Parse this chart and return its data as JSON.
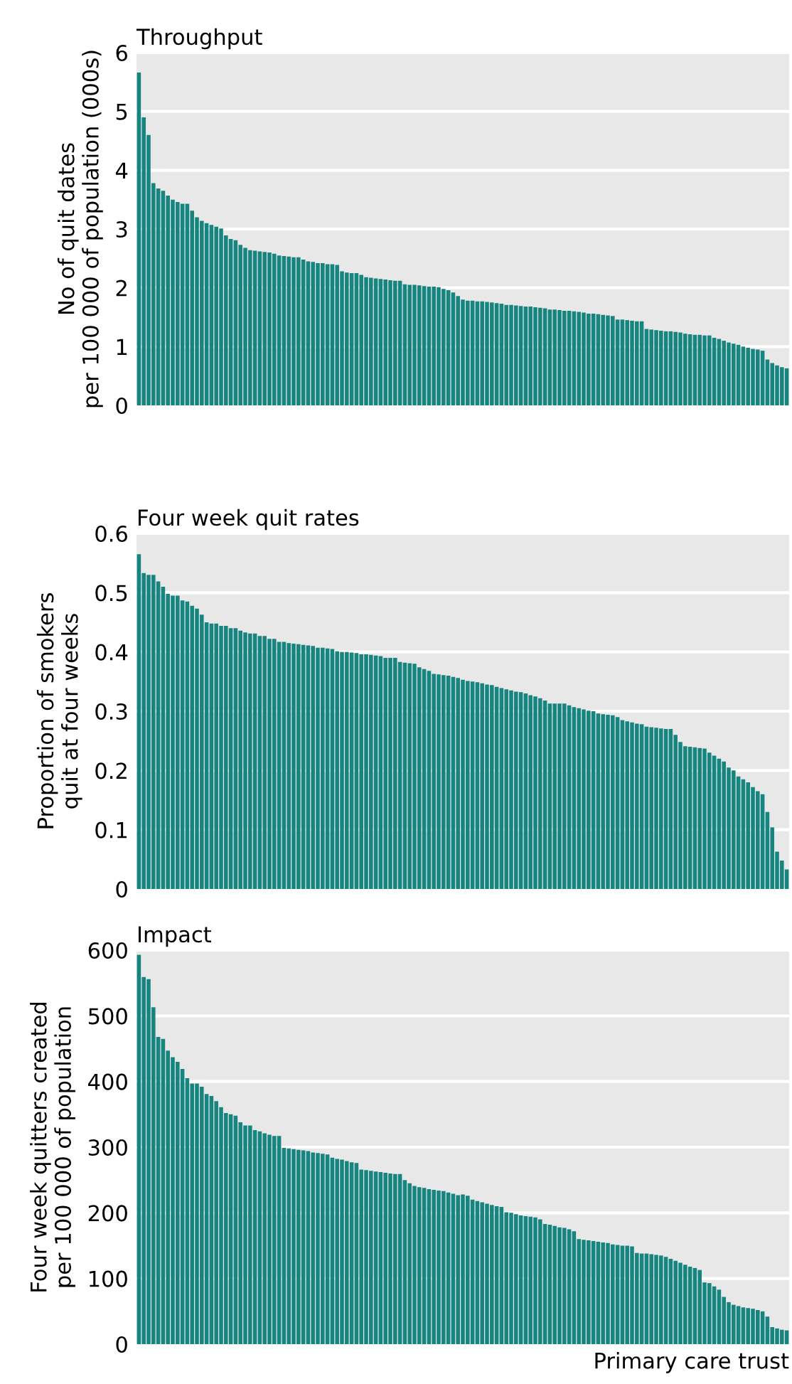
{
  "chart_data": [
    {
      "type": "bar",
      "title": "Throughput",
      "ylabel": "No of quit dates\nper 100 000 of population (000s)",
      "categories": [
        null,
        null,
        null,
        null,
        null,
        null,
        null,
        null,
        null,
        null,
        null,
        null,
        null,
        null,
        null,
        null,
        null,
        null,
        null,
        null,
        null,
        null,
        null,
        null,
        null,
        null,
        null,
        null,
        null,
        null,
        null,
        null,
        null,
        null,
        null,
        null,
        null,
        null,
        null,
        null,
        null,
        null,
        null,
        null,
        null,
        null,
        null,
        null,
        null,
        null,
        null,
        null,
        null,
        null,
        null,
        null,
        null,
        null,
        null,
        null,
        null,
        null,
        null,
        null,
        null,
        null,
        null,
        null,
        null,
        null,
        null,
        null,
        null,
        null,
        null,
        null,
        null,
        null,
        null,
        null,
        null,
        null,
        null,
        null,
        null,
        null,
        null,
        null,
        null,
        null,
        null,
        null,
        null,
        null,
        null,
        null,
        null,
        null,
        null,
        null,
        null,
        null,
        null,
        null,
        null,
        null,
        null,
        null,
        null,
        null,
        null,
        null,
        null,
        null,
        null,
        null,
        null,
        null,
        null,
        null,
        null,
        null,
        null,
        null,
        null,
        null,
        null,
        null,
        null,
        null,
        null,
        null,
        null,
        null,
        null
      ],
      "color": "#17857f",
      "values": [
        5.66,
        4.9,
        4.6,
        3.78,
        3.69,
        3.65,
        3.57,
        3.5,
        3.46,
        3.43,
        3.43,
        3.31,
        3.2,
        3.14,
        3.1,
        3.07,
        3.04,
        3.01,
        2.89,
        2.83,
        2.81,
        2.73,
        2.68,
        2.64,
        2.63,
        2.62,
        2.61,
        2.6,
        2.58,
        2.55,
        2.54,
        2.53,
        2.52,
        2.52,
        2.48,
        2.45,
        2.44,
        2.42,
        2.42,
        2.4,
        2.4,
        2.39,
        2.28,
        2.26,
        2.25,
        2.25,
        2.22,
        2.18,
        2.17,
        2.16,
        2.15,
        2.14,
        2.13,
        2.12,
        2.12,
        2.06,
        2.05,
        2.05,
        2.04,
        2.03,
        2.02,
        2.02,
        2.01,
        1.98,
        1.96,
        1.92,
        1.86,
        1.8,
        1.78,
        1.78,
        1.77,
        1.77,
        1.76,
        1.75,
        1.74,
        1.73,
        1.71,
        1.71,
        1.7,
        1.69,
        1.68,
        1.68,
        1.67,
        1.66,
        1.65,
        1.63,
        1.63,
        1.62,
        1.61,
        1.61,
        1.6,
        1.59,
        1.58,
        1.56,
        1.56,
        1.55,
        1.54,
        1.53,
        1.52,
        1.46,
        1.46,
        1.45,
        1.44,
        1.43,
        1.43,
        1.3,
        1.29,
        1.28,
        1.27,
        1.26,
        1.26,
        1.25,
        1.24,
        1.22,
        1.21,
        1.2,
        1.2,
        1.19,
        1.19,
        1.15,
        1.13,
        1.1,
        1.07,
        1.05,
        1.03,
        1.0,
        0.98,
        0.96,
        0.95,
        0.93,
        0.78,
        0.72,
        0.68,
        0.65,
        0.63
      ],
      "ylim": [
        0,
        6
      ],
      "yticks": [
        0,
        1,
        2,
        3,
        4,
        5,
        6
      ],
      "grid": "y",
      "tick_labels": "y"
    },
    {
      "type": "bar",
      "title": "Four week quit rates",
      "ylabel": "Proportion of smokers\nquit at four weeks",
      "categories": [
        null,
        null,
        null,
        null,
        null,
        null,
        null,
        null,
        null,
        null,
        null,
        null,
        null,
        null,
        null,
        null,
        null,
        null,
        null,
        null,
        null,
        null,
        null,
        null,
        null,
        null,
        null,
        null,
        null,
        null,
        null,
        null,
        null,
        null,
        null,
        null,
        null,
        null,
        null,
        null,
        null,
        null,
        null,
        null,
        null,
        null,
        null,
        null,
        null,
        null,
        null,
        null,
        null,
        null,
        null,
        null,
        null,
        null,
        null,
        null,
        null,
        null,
        null,
        null,
        null,
        null,
        null,
        null,
        null,
        null,
        null,
        null,
        null,
        null,
        null,
        null,
        null,
        null,
        null,
        null,
        null,
        null,
        null,
        null,
        null,
        null,
        null,
        null,
        null,
        null,
        null,
        null,
        null,
        null,
        null,
        null,
        null,
        null,
        null,
        null,
        null,
        null,
        null,
        null,
        null,
        null,
        null,
        null,
        null,
        null,
        null,
        null,
        null,
        null,
        null,
        null,
        null,
        null,
        null,
        null,
        null,
        null,
        null,
        null,
        null,
        null,
        null,
        null,
        null,
        null,
        null,
        null,
        null,
        null,
        null
      ],
      "color": "#17857f",
      "values": [
        0.565,
        0.533,
        0.53,
        0.53,
        0.519,
        0.51,
        0.498,
        0.495,
        0.495,
        0.487,
        0.485,
        0.478,
        0.473,
        0.463,
        0.45,
        0.448,
        0.448,
        0.444,
        0.444,
        0.44,
        0.44,
        0.436,
        0.433,
        0.431,
        0.431,
        0.427,
        0.427,
        0.422,
        0.422,
        0.417,
        0.417,
        0.415,
        0.414,
        0.413,
        0.412,
        0.411,
        0.41,
        0.407,
        0.407,
        0.406,
        0.405,
        0.401,
        0.4,
        0.4,
        0.399,
        0.398,
        0.396,
        0.396,
        0.395,
        0.394,
        0.393,
        0.39,
        0.39,
        0.39,
        0.383,
        0.382,
        0.381,
        0.38,
        0.374,
        0.371,
        0.368,
        0.363,
        0.362,
        0.361,
        0.36,
        0.358,
        0.356,
        0.353,
        0.351,
        0.35,
        0.349,
        0.347,
        0.345,
        0.344,
        0.341,
        0.339,
        0.337,
        0.335,
        0.333,
        0.332,
        0.33,
        0.327,
        0.325,
        0.322,
        0.318,
        0.313,
        0.313,
        0.313,
        0.313,
        0.31,
        0.307,
        0.305,
        0.303,
        0.301,
        0.3,
        0.296,
        0.295,
        0.294,
        0.293,
        0.29,
        0.285,
        0.283,
        0.281,
        0.279,
        0.278,
        0.274,
        0.273,
        0.272,
        0.271,
        0.27,
        0.27,
        0.26,
        0.248,
        0.241,
        0.24,
        0.239,
        0.238,
        0.237,
        0.23,
        0.225,
        0.22,
        0.215,
        0.205,
        0.2,
        0.19,
        0.185,
        0.18,
        0.172,
        0.165,
        0.16,
        0.13,
        0.104,
        0.063,
        0.048,
        0.033
      ],
      "ylim": [
        0,
        0.6
      ],
      "yticks": [
        0,
        0.1,
        0.2,
        0.3,
        0.4,
        0.5,
        0.6
      ],
      "grid": "y",
      "tick_labels": "y"
    },
    {
      "type": "bar",
      "title": "Impact",
      "ylabel": "Four week quitters created\nper 100 000 of population",
      "xlabel": "Primary care trust",
      "categories": [
        null,
        null,
        null,
        null,
        null,
        null,
        null,
        null,
        null,
        null,
        null,
        null,
        null,
        null,
        null,
        null,
        null,
        null,
        null,
        null,
        null,
        null,
        null,
        null,
        null,
        null,
        null,
        null,
        null,
        null,
        null,
        null,
        null,
        null,
        null,
        null,
        null,
        null,
        null,
        null,
        null,
        null,
        null,
        null,
        null,
        null,
        null,
        null,
        null,
        null,
        null,
        null,
        null,
        null,
        null,
        null,
        null,
        null,
        null,
        null,
        null,
        null,
        null,
        null,
        null,
        null,
        null,
        null,
        null,
        null,
        null,
        null,
        null,
        null,
        null,
        null,
        null,
        null,
        null,
        null,
        null,
        null,
        null,
        null,
        null,
        null,
        null,
        null,
        null,
        null,
        null,
        null,
        null,
        null,
        null,
        null,
        null,
        null,
        null,
        null,
        null,
        null,
        null,
        null,
        null,
        null,
        null,
        null,
        null,
        null,
        null,
        null,
        null,
        null,
        null,
        null,
        null,
        null,
        null,
        null,
        null,
        null,
        null,
        null,
        null,
        null,
        null,
        null,
        null,
        null,
        null,
        null,
        null,
        null,
        null
      ],
      "color": "#17857f",
      "values": [
        593,
        559,
        556,
        513,
        468,
        465,
        447,
        437,
        430,
        419,
        405,
        397,
        397,
        392,
        381,
        378,
        370,
        361,
        352,
        350,
        348,
        338,
        333,
        333,
        326,
        324,
        321,
        319,
        317,
        317,
        299,
        298,
        297,
        296,
        295,
        294,
        292,
        291,
        290,
        289,
        284,
        282,
        281,
        279,
        277,
        276,
        266,
        265,
        264,
        263,
        262,
        261,
        260,
        259,
        259,
        250,
        245,
        241,
        239,
        238,
        236,
        235,
        234,
        233,
        231,
        229,
        227,
        228,
        226,
        220,
        218,
        216,
        214,
        212,
        210,
        209,
        201,
        200,
        198,
        196,
        195,
        194,
        193,
        190,
        183,
        182,
        180,
        178,
        177,
        175,
        172,
        160,
        159,
        158,
        157,
        156,
        155,
        154,
        152,
        151,
        150,
        150,
        149,
        139,
        138,
        138,
        137,
        136,
        135,
        133,
        130,
        127,
        124,
        121,
        118,
        116,
        113,
        94,
        93,
        88,
        83,
        72,
        64,
        60,
        58,
        56,
        55,
        54,
        52,
        50,
        42,
        26,
        24,
        22,
        21
      ],
      "ylim": [
        0,
        600
      ],
      "yticks": [
        0,
        100,
        200,
        300,
        400,
        500,
        600
      ],
      "grid": "y",
      "tick_labels": "y"
    }
  ]
}
